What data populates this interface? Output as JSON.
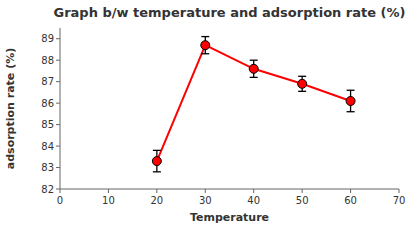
{
  "chart_data": {
    "type": "line",
    "title": "Graph b/w temperature and adsorption rate (%)",
    "xlabel": "Temperature",
    "ylabel": "adsorption rate (%)",
    "x": [
      20,
      30,
      40,
      50,
      60
    ],
    "values": [
      83.3,
      88.7,
      87.6,
      86.9,
      86.1
    ],
    "errors": [
      0.5,
      0.4,
      0.4,
      0.35,
      0.5
    ],
    "xlim": [
      0,
      70
    ],
    "xticks": [
      0,
      10,
      20,
      30,
      40,
      50,
      60,
      70
    ],
    "ylim": [
      82,
      89.5
    ],
    "yticks": [
      82,
      83,
      84,
      85,
      86,
      87,
      88,
      89
    ],
    "color": "#ff0000",
    "marker": "circle",
    "grid": false
  }
}
